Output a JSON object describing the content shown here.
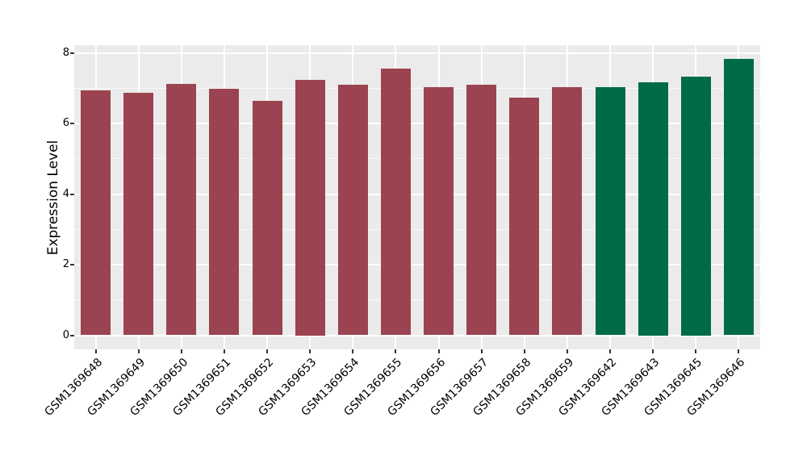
{
  "chart_data": {
    "type": "bar",
    "ylabel": "Expression Level",
    "xlabel": "",
    "categories": [
      "GSM1369648",
      "GSM1369649",
      "GSM1369650",
      "GSM1369651",
      "GSM1369652",
      "GSM1369653",
      "GSM1369654",
      "GSM1369655",
      "GSM1369656",
      "GSM1369657",
      "GSM1369658",
      "GSM1369659",
      "GSM1369642",
      "GSM1369643",
      "GSM1369645",
      "GSM1369646"
    ],
    "values": [
      6.94,
      6.87,
      7.13,
      6.99,
      6.65,
      7.24,
      7.09,
      7.56,
      7.03,
      7.11,
      6.73,
      7.04,
      7.04,
      7.16,
      7.33,
      7.82
    ],
    "bar_colors": [
      "#9B4350",
      "#9B4350",
      "#9B4350",
      "#9B4350",
      "#9B4350",
      "#9B4350",
      "#9B4350",
      "#9B4350",
      "#9B4350",
      "#9B4350",
      "#9B4350",
      "#9B4350",
      "#006B48",
      "#006B48",
      "#006B48",
      "#006B48"
    ],
    "group_colors": {
      "group1": "#9B4350",
      "group2": "#006B48"
    },
    "ylim": [
      0,
      8
    ],
    "yticks": [
      0,
      2,
      4,
      6,
      8
    ],
    "yticks_minor": [
      1,
      3,
      5,
      7
    ],
    "grid": "on",
    "legend": "none",
    "panel_background": "#EBEBEB",
    "gridline_color": "#FFFFFF"
  }
}
